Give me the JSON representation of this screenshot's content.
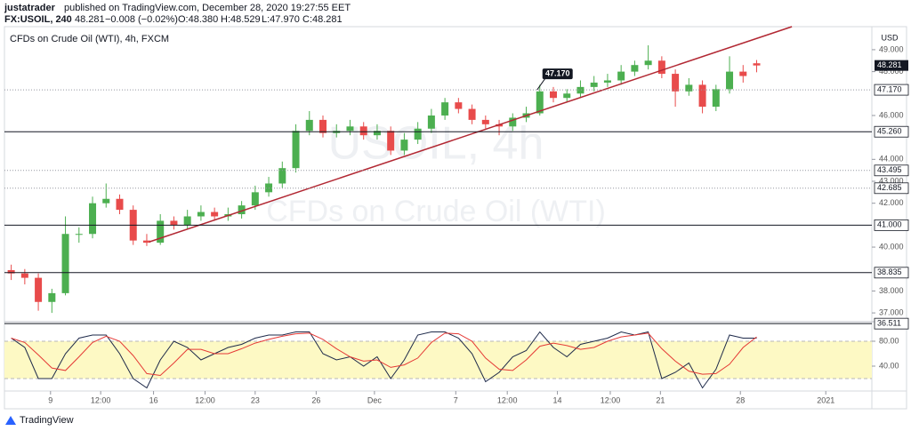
{
  "header": {
    "author": "justatrader",
    "published": "published on TradingView.com, December 28, 2020 19:27:55 EET",
    "symbol": "FX:USOIL, 240",
    "last": "48.281",
    "change": "−0.008 (−0.02%)",
    "open": "O:48.380",
    "high": "H:48.529",
    "low": "L:47.970",
    "close": "C:48.281"
  },
  "footer": {
    "brand": "TradingView"
  },
  "chart_data": [
    {
      "type": "candlestick",
      "title": "CFDs on Crude Oil (WTI), 4h, FXCM",
      "watermark": [
        "USOIL, 4h",
        "CFDs on Crude Oil (WTI)"
      ],
      "currency": "USD",
      "up_color": "#4caf50",
      "down_color": "#e84b4b",
      "xlim": [
        -0.5,
        63.5
      ],
      "ylim": [
        36.68,
        50.05
      ],
      "yticks": [
        {
          "value": 37,
          "label": "37.000"
        },
        {
          "value": 38,
          "label": "38.000"
        },
        {
          "value": 40,
          "label": "40.000"
        },
        {
          "value": 42,
          "label": "42.000"
        },
        {
          "value": 43,
          "label": "43.000"
        },
        {
          "value": 44,
          "label": "44.000"
        },
        {
          "value": 46,
          "label": "46.000"
        },
        {
          "value": 48,
          "label": "48.000"
        },
        {
          "value": 49,
          "label": "49.000"
        }
      ],
      "series": [
        {
          "name": "FX:USOIL",
          "open": [
            38.95,
            38.8,
            38.6,
            37.5,
            37.9,
            40.6,
            40.6,
            42.0,
            42.2,
            41.7,
            40.3,
            40.2,
            41.2,
            41.0,
            41.4,
            41.6,
            41.4,
            41.5,
            41.9,
            42.5,
            42.9,
            43.6,
            45.3,
            45.8,
            45.2,
            45.3,
            45.5,
            45.1,
            45.3,
            44.4,
            44.9,
            45.4,
            46.0,
            46.6,
            46.3,
            45.8,
            45.6,
            45.5,
            45.9,
            46.1,
            47.1,
            46.8,
            47.0,
            47.3,
            47.5,
            47.6,
            48.0,
            48.3,
            48.5,
            47.9,
            47.1,
            47.4,
            46.4,
            47.2,
            48.0,
            48.38
          ],
          "high": [
            39.2,
            39.0,
            38.8,
            38.1,
            41.4,
            40.9,
            42.3,
            42.9,
            42.4,
            41.9,
            40.6,
            41.5,
            41.4,
            41.7,
            41.9,
            41.8,
            41.8,
            42.1,
            42.8,
            43.2,
            43.9,
            45.6,
            46.2,
            46.0,
            45.6,
            45.8,
            45.7,
            45.6,
            45.5,
            45.2,
            45.7,
            46.3,
            46.8,
            46.8,
            46.5,
            46.0,
            45.8,
            46.1,
            46.4,
            47.4,
            47.3,
            47.2,
            47.6,
            47.8,
            47.9,
            48.3,
            48.5,
            49.2,
            48.7,
            48.1,
            47.7,
            47.6,
            47.4,
            48.7,
            48.3,
            48.529
          ],
          "low": [
            38.5,
            38.3,
            37.1,
            37.0,
            37.8,
            40.2,
            40.4,
            41.8,
            41.5,
            40.1,
            40.05,
            40.1,
            40.8,
            40.8,
            41.2,
            41.2,
            41.2,
            41.3,
            41.7,
            42.3,
            42.7,
            43.4,
            45.1,
            45.0,
            45.0,
            45.1,
            44.9,
            44.9,
            44.2,
            44.2,
            44.7,
            45.2,
            45.8,
            46.1,
            45.6,
            45.4,
            45.1,
            45.3,
            45.7,
            46.0,
            46.6,
            46.6,
            46.8,
            47.1,
            47.3,
            47.4,
            47.8,
            48.1,
            47.7,
            46.4,
            46.9,
            46.1,
            46.2,
            47.0,
            47.5,
            47.97
          ],
          "close": [
            38.8,
            38.6,
            37.5,
            37.9,
            40.6,
            40.6,
            42.0,
            42.2,
            41.7,
            40.3,
            40.2,
            41.2,
            41.0,
            41.4,
            41.6,
            41.4,
            41.5,
            41.9,
            42.5,
            42.9,
            43.6,
            45.3,
            45.8,
            45.2,
            45.3,
            45.5,
            45.1,
            45.3,
            44.4,
            44.9,
            45.4,
            46.0,
            46.6,
            46.3,
            45.8,
            45.6,
            45.5,
            45.9,
            46.1,
            47.1,
            46.8,
            47.0,
            47.3,
            47.5,
            47.6,
            48.0,
            48.3,
            48.5,
            47.9,
            47.1,
            47.4,
            46.4,
            47.2,
            48.0,
            47.8,
            48.281
          ]
        }
      ],
      "levels": {
        "values": [
          47.17,
          45.26,
          43.495,
          42.685,
          41,
          38.835,
          36.511
        ],
        "value_labels": [
          "47.170",
          "45.260",
          "43.495",
          "42.685",
          "41.000",
          "38.835",
          "36.511"
        ],
        "styles": [
          "dotted",
          "solid",
          "dotted",
          "dotted",
          "solid",
          "solid",
          "solid"
        ],
        "color": "#131722"
      },
      "last_price": {
        "value": 48.281,
        "label": "48.281"
      },
      "trendline": {
        "x": [
          10.2,
          57.6
        ],
        "y": [
          40.24,
          50.05
        ],
        "color": "#b22833"
      },
      "annotations": [
        {
          "label": "47.170",
          "x": 38.8,
          "value": 47.17
        }
      ]
    },
    {
      "type": "line",
      "xlim": [
        -0.5,
        63.5
      ],
      "ylim": [
        0,
        107.1
      ],
      "band": [
        20,
        80
      ],
      "band_color": "#fdf9c4",
      "yticks": [
        {
          "value": 40,
          "label": "40.00"
        },
        {
          "value": 80,
          "label": "80.00"
        }
      ],
      "xticks": [
        {
          "value": 2.9,
          "label": "9"
        },
        {
          "value": 6.6,
          "label": "12:00"
        },
        {
          "value": 10.5,
          "label": "16"
        },
        {
          "value": 14.3,
          "label": "12:00"
        },
        {
          "value": 18.0,
          "label": "23"
        },
        {
          "value": 22.5,
          "label": "26"
        },
        {
          "value": 26.8,
          "label": "Dec"
        },
        {
          "value": 32.8,
          "label": "7"
        },
        {
          "value": 36.6,
          "label": "12:00"
        },
        {
          "value": 40.3,
          "label": "14"
        },
        {
          "value": 44.2,
          "label": "12:00"
        },
        {
          "value": 47.9,
          "label": "21"
        },
        {
          "value": 53.8,
          "label": "28"
        },
        {
          "value": 60.1,
          "label": "2021"
        }
      ],
      "series": [
        {
          "name": "%K",
          "color": "#1e2a4a",
          "values": [
            85,
            70,
            20,
            20,
            60,
            85,
            90,
            90,
            60,
            20,
            5,
            50,
            80,
            70,
            50,
            60,
            70,
            75,
            85,
            90,
            90,
            95,
            95,
            60,
            50,
            55,
            40,
            55,
            20,
            50,
            90,
            95,
            95,
            85,
            60,
            15,
            30,
            55,
            65,
            95,
            70,
            55,
            75,
            80,
            85,
            95,
            90,
            95,
            20,
            30,
            45,
            5,
            35,
            90,
            85,
            85
          ]
        },
        {
          "name": "%D",
          "color": "#e53935",
          "values": [
            85,
            78,
            58,
            37,
            33,
            55,
            78,
            88,
            80,
            57,
            28,
            25,
            45,
            67,
            67,
            60,
            60,
            68,
            77,
            83,
            88,
            92,
            93,
            83,
            68,
            55,
            48,
            50,
            38,
            42,
            53,
            78,
            93,
            92,
            80,
            53,
            35,
            33,
            50,
            72,
            77,
            73,
            67,
            70,
            80,
            87,
            90,
            93,
            68,
            48,
            32,
            27,
            28,
            43,
            70,
            87
          ]
        }
      ]
    }
  ]
}
